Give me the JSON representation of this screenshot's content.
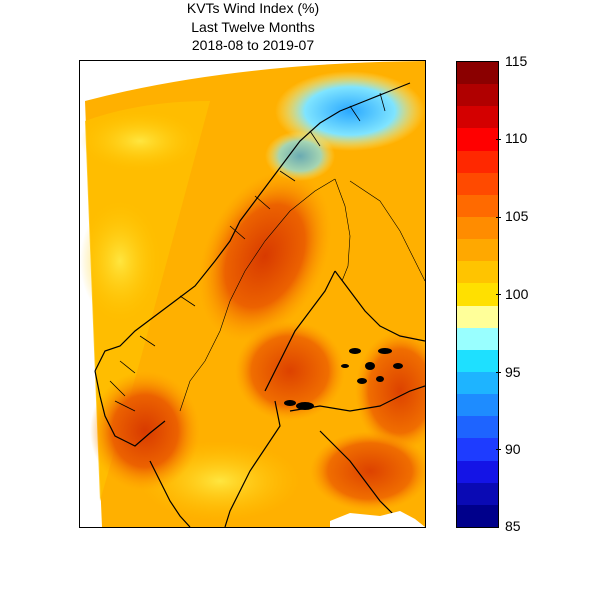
{
  "title": {
    "line1": "KVTs Wind Index (%)",
    "line2": "Last Twelve Months",
    "line3": "2018-08 to 2019-07"
  },
  "colorbar": {
    "ticks": [
      "115",
      "110",
      "105",
      "100",
      "95",
      "90",
      "85"
    ],
    "colors_top_to_bottom": [
      "#8b0000",
      "#b00000",
      "#d40000",
      "#ff0000",
      "#ff2800",
      "#ff4a00",
      "#ff6a00",
      "#ff8c00",
      "#ffa800",
      "#ffc400",
      "#ffe000",
      "#ffff99",
      "#99ffff",
      "#1ee0ff",
      "#1eb4ff",
      "#1e8cff",
      "#1e64ff",
      "#1e3cff",
      "#1414e6",
      "#0a0ab4",
      "#00008b"
    ]
  },
  "map": {
    "region": "Scandinavia",
    "land_color": "#ffb400",
    "high_color": "#e84a00",
    "low_color": "#33ccff"
  }
}
